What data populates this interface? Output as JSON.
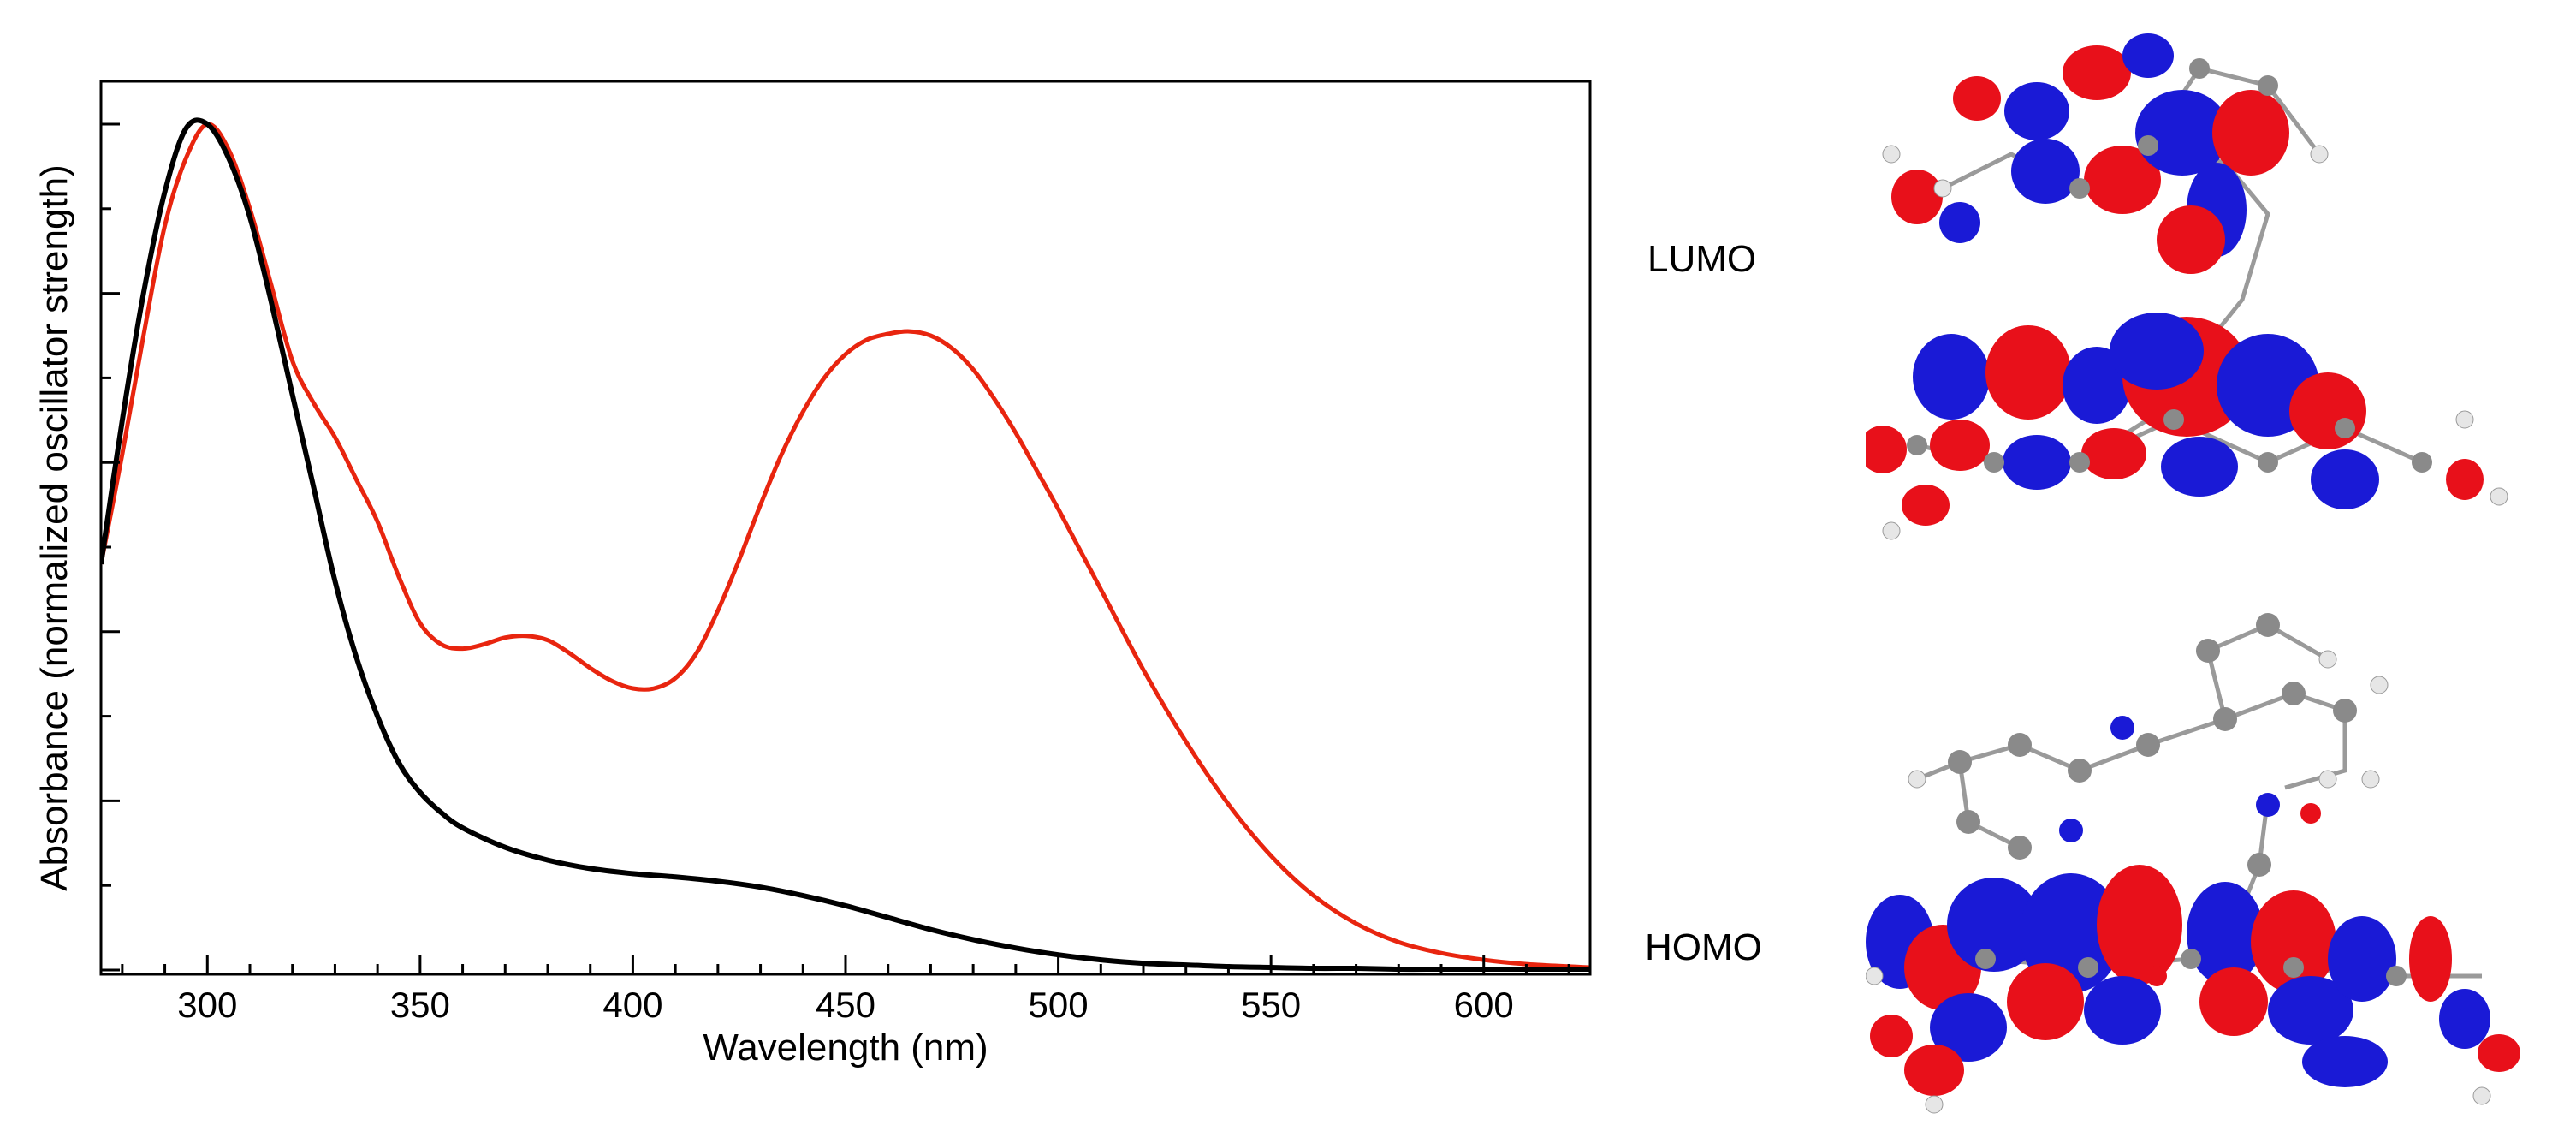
{
  "chart_data": {
    "type": "line",
    "title": "",
    "xlabel": "Wavelength (nm)",
    "ylabel": "Absorbance (normalized oscillator strength)",
    "xlim": [
      275,
      625
    ],
    "ylim": [
      0,
      1.0
    ],
    "x_ticks": [
      300,
      350,
      400,
      450,
      500,
      550,
      600
    ],
    "y_ticks_labeled": false,
    "grid": false,
    "legend": "none",
    "series": [
      {
        "color": "#e8250f",
        "x": [
          275,
          280,
          285,
          290,
          295,
          300,
          305,
          310,
          315,
          320,
          325,
          330,
          335,
          340,
          345,
          350,
          355,
          360,
          365,
          370,
          375,
          380,
          385,
          390,
          395,
          400,
          405,
          410,
          415,
          420,
          425,
          430,
          435,
          440,
          445,
          450,
          455,
          460,
          465,
          470,
          475,
          480,
          485,
          490,
          495,
          500,
          510,
          520,
          530,
          540,
          550,
          560,
          570,
          580,
          590,
          600,
          610,
          625
        ],
        "y": [
          0.48,
          0.61,
          0.75,
          0.88,
          0.96,
          1.0,
          0.97,
          0.9,
          0.81,
          0.72,
          0.67,
          0.63,
          0.58,
          0.53,
          0.465,
          0.41,
          0.385,
          0.38,
          0.385,
          0.393,
          0.395,
          0.39,
          0.375,
          0.357,
          0.342,
          0.333,
          0.333,
          0.345,
          0.375,
          0.425,
          0.485,
          0.55,
          0.61,
          0.66,
          0.7,
          0.728,
          0.745,
          0.752,
          0.755,
          0.75,
          0.735,
          0.71,
          0.675,
          0.635,
          0.59,
          0.545,
          0.45,
          0.355,
          0.27,
          0.196,
          0.135,
          0.088,
          0.055,
          0.033,
          0.02,
          0.012,
          0.007,
          0.003
        ]
      },
      {
        "color": "#000000",
        "x": [
          275,
          280,
          285,
          290,
          295,
          300,
          305,
          310,
          315,
          320,
          325,
          330,
          335,
          340,
          345,
          350,
          355,
          360,
          370,
          380,
          390,
          400,
          410,
          420,
          430,
          440,
          450,
          460,
          470,
          480,
          490,
          500,
          510,
          520,
          530,
          540,
          550,
          560,
          570,
          580,
          590,
          600,
          610,
          625
        ],
        "y": [
          0.48,
          0.65,
          0.8,
          0.92,
          0.995,
          1.0,
          0.96,
          0.89,
          0.79,
          0.68,
          0.57,
          0.46,
          0.37,
          0.3,
          0.245,
          0.21,
          0.186,
          0.168,
          0.145,
          0.13,
          0.12,
          0.114,
          0.11,
          0.105,
          0.098,
          0.088,
          0.076,
          0.062,
          0.048,
          0.036,
          0.026,
          0.018,
          0.012,
          0.008,
          0.006,
          0.004,
          0.003,
          0.002,
          0.002,
          0.001,
          0.001,
          0.001,
          0.001,
          0.001
        ]
      }
    ]
  },
  "orbitals": {
    "lumo_label": "LUMO",
    "homo_label": "HOMO",
    "colors": {
      "positive": "#e8101a",
      "negative": "#1a1ad6",
      "carbon": "#8a8a8a",
      "hydrogen": "#e6e6e6"
    }
  }
}
